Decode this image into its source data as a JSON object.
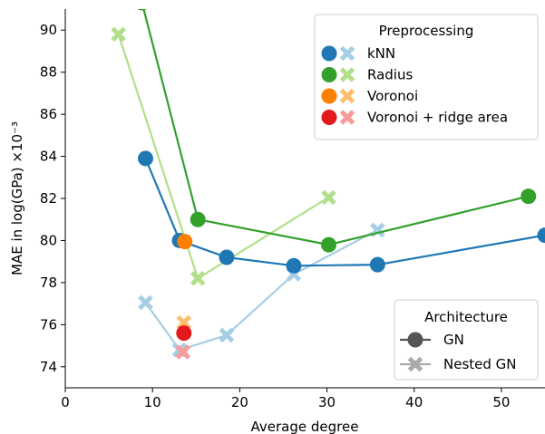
{
  "chart_data": {
    "type": "line",
    "xlabel": "Average degree",
    "ylabel": "MAE in log(GPa) ×10⁻³",
    "xlim": [
      0,
      55
    ],
    "ylim": [
      73,
      91
    ],
    "xticks": [
      0,
      10,
      20,
      30,
      40,
      50
    ],
    "yticks": [
      74,
      76,
      78,
      80,
      82,
      84,
      86,
      88,
      90
    ],
    "grid": false,
    "series": [
      {
        "name": "kNN",
        "architecture": "GN",
        "marker": "circle",
        "color": "#1f78b4",
        "x": [
          9.2,
          13.1,
          18.5,
          26.2,
          35.8,
          55.0
        ],
        "y": [
          83.9,
          80.0,
          79.2,
          78.8,
          78.85,
          80.25
        ]
      },
      {
        "name": "kNN",
        "architecture": "Nested GN",
        "marker": "x",
        "color": "#a6cee3",
        "x": [
          9.2,
          13.1,
          18.5,
          26.2,
          35.8
        ],
        "y": [
          77.05,
          74.8,
          75.5,
          78.4,
          80.5
        ]
      },
      {
        "name": "Radius",
        "architecture": "GN",
        "marker": "circle",
        "color": "#33a02c",
        "x": [
          8.8,
          15.2,
          30.2,
          53.1
        ],
        "y": [
          91.3,
          81.0,
          79.8,
          82.1
        ]
      },
      {
        "name": "Radius",
        "architecture": "Nested GN",
        "marker": "x",
        "color": "#b2df8a",
        "x": [
          6.1,
          15.2,
          30.2
        ],
        "y": [
          89.8,
          78.2,
          82.05
        ]
      },
      {
        "name": "Voronoi",
        "architecture": "GN",
        "marker": "circle",
        "color": "#ff7f00",
        "x": [
          13.7
        ],
        "y": [
          79.95
        ]
      },
      {
        "name": "Voronoi",
        "architecture": "Nested GN",
        "marker": "x",
        "color": "#fdbf6f",
        "x": [
          13.6
        ],
        "y": [
          76.1
        ]
      },
      {
        "name": "Voronoi + ridge area",
        "architecture": "GN",
        "marker": "circle",
        "color": "#e31a1c",
        "x": [
          13.6
        ],
        "y": [
          75.6
        ]
      },
      {
        "name": "Voronoi + ridge area",
        "architecture": "Nested GN",
        "marker": "x",
        "color": "#fb9a99",
        "x": [
          13.5
        ],
        "y": [
          74.7
        ]
      }
    ],
    "legend_preprocessing": {
      "title": "Preprocessing",
      "placement": "top-right",
      "entries": [
        {
          "label": "kNN",
          "dark": "#1f78b4",
          "light": "#a6cee3"
        },
        {
          "label": "Radius",
          "dark": "#33a02c",
          "light": "#b2df8a"
        },
        {
          "label": "Voronoi",
          "dark": "#ff7f00",
          "light": "#fdbf6f"
        },
        {
          "label": "Voronoi + ridge area",
          "dark": "#e31a1c",
          "light": "#fb9a99"
        }
      ]
    },
    "legend_architecture": {
      "title": "Architecture",
      "placement": "bottom-right",
      "entries": [
        {
          "label": "GN",
          "marker": "circle",
          "color": "#555555"
        },
        {
          "label": "Nested GN",
          "marker": "x",
          "color": "#aaaaaa"
        }
      ]
    }
  }
}
